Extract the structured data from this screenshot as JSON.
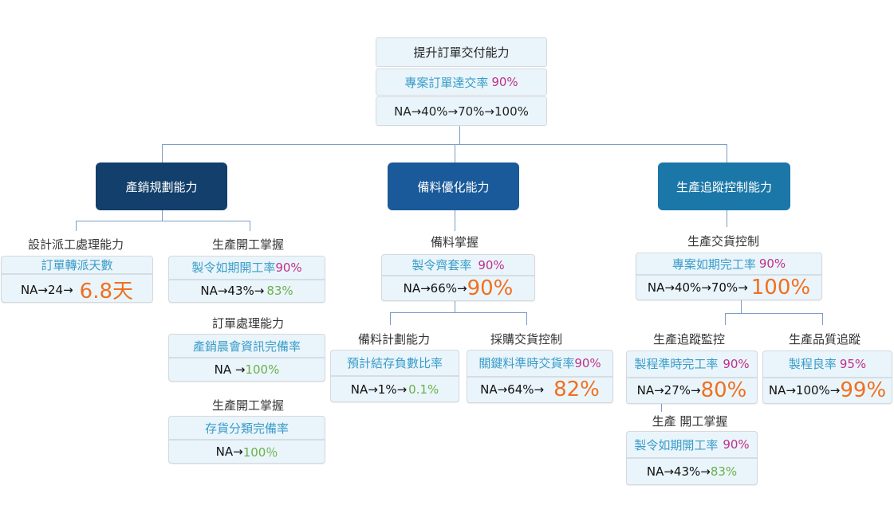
{
  "colors": {
    "level1_a": "#123f6b",
    "level1_b": "#1a5a9a",
    "level1_c": "#1a77a8",
    "metric": "#3a9cc8",
    "target": "#c0308a",
    "highlight": "#f07020",
    "achieved": "#6ab04c"
  },
  "root": {
    "title": "提升訂單交付能力",
    "metric": "專案訂單達交率",
    "target": "90%",
    "progress": "NA→40%→70%→100%"
  },
  "categories": [
    {
      "label": "產銷規劃能力"
    },
    {
      "label": "備料優化能力"
    },
    {
      "label": "生產追蹤控制能力"
    }
  ],
  "nodes": {
    "dispatch": {
      "label": "設計派工處理能力",
      "metric": "訂單轉派天數",
      "prefix": "NA→24→",
      "result": "6.8天"
    },
    "start1": {
      "label": "生產開工掌握",
      "metric": "製令如期開工率",
      "target": "90%",
      "prefix": "NA→43%→",
      "result": "83%"
    },
    "order": {
      "label": "訂單處理能力",
      "metric": "產銷晨會資訊完備率",
      "prefix": "NA →",
      "result": "100%"
    },
    "start2": {
      "label": "生產開工掌握",
      "metric": "存貨分類完備率",
      "prefix": "NA→",
      "result": "100％"
    },
    "material": {
      "label": "備料掌握",
      "metric": "製令齊套率",
      "target": "90%",
      "prefix": "NA→66%→",
      "result": "90%"
    },
    "plan": {
      "label": "備料計劃能力",
      "metric": "預計結存負數比率",
      "prefix": "NA→1%→",
      "result": "0.1%"
    },
    "purchase": {
      "label": "採購交貨控制",
      "metric": "關鍵料準時交貨率",
      "target": "90%",
      "prefix": "NA→64%→",
      "result": "82%"
    },
    "delivery": {
      "label": "生產交貨控制",
      "metric": "專案如期完工率",
      "target": "90%",
      "prefix": "NA→40%→70%→",
      "result": "100%"
    },
    "monitor": {
      "label": "生產追蹤監控",
      "metric": "製程準時完工率",
      "target": "90%",
      "prefix": "NA→27%→",
      "result": "80%"
    },
    "quality": {
      "label": "生產品質追蹤",
      "metric": "製程良率",
      "target": "95%",
      "prefix": "NA→100%→",
      "result": "99%"
    },
    "start3": {
      "label": "生產 開工掌握",
      "metric": "製令如期開工率",
      "target": "90%",
      "prefix": "NA→43%→",
      "result": "83%"
    }
  }
}
